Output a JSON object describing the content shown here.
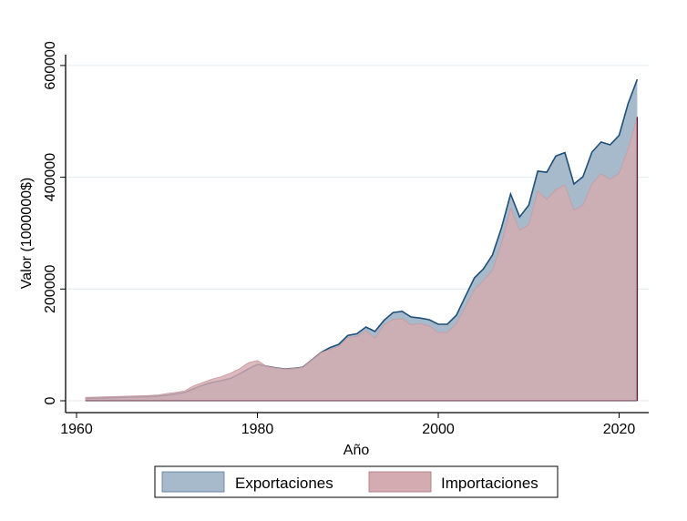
{
  "chart_data": {
    "type": "area",
    "xlabel": "Año",
    "ylabel": "Valor (1000000$)",
    "xlim": [
      1960,
      2023
    ],
    "ylim": [
      0,
      600000
    ],
    "xticks": [
      "1960",
      "1980",
      "2000",
      "2020"
    ],
    "yticks": [
      "0",
      "200000",
      "400000",
      "600000"
    ],
    "grid": true,
    "legend_position": "bottom",
    "x": [
      1961,
      1962,
      1963,
      1964,
      1965,
      1966,
      1967,
      1968,
      1969,
      1970,
      1971,
      1972,
      1973,
      1974,
      1975,
      1976,
      1977,
      1978,
      1979,
      1980,
      1981,
      1982,
      1983,
      1984,
      1985,
      1986,
      1987,
      1988,
      1989,
      1990,
      1991,
      1992,
      1993,
      1994,
      1995,
      1996,
      1997,
      1998,
      1999,
      2000,
      2001,
      2002,
      2003,
      2004,
      2005,
      2006,
      2007,
      2008,
      2009,
      2010,
      2011,
      2012,
      2013,
      2014,
      2015,
      2016,
      2017,
      2018,
      2019,
      2020,
      2021,
      2022
    ],
    "series": [
      {
        "name": "Exportaciones",
        "color": "#a7bacb",
        "line_color": "#1f4e79",
        "values": [
          4000,
          4500,
          5000,
          5500,
          6000,
          6500,
          7000,
          7500,
          8500,
          10000,
          12000,
          15000,
          22000,
          28000,
          33000,
          36000,
          40000,
          48000,
          57000,
          65000,
          62000,
          59000,
          57000,
          58000,
          60000,
          73000,
          86000,
          95000,
          101000,
          117000,
          120000,
          132000,
          124000,
          144000,
          158000,
          160000,
          150000,
          148000,
          145000,
          137000,
          137000,
          153000,
          187000,
          220000,
          236000,
          261000,
          310000,
          370000,
          329000,
          350000,
          411000,
          409000,
          438000,
          444000,
          388000,
          401000,
          445000,
          463000,
          458000,
          475000,
          532000,
          575000
        ]
      },
      {
        "name": "Importaciones",
        "color": "#d4abb0",
        "values": [
          6000,
          6500,
          7000,
          7500,
          8000,
          8500,
          9000,
          9500,
          10500,
          13000,
          15000,
          18000,
          27000,
          33000,
          39000,
          43000,
          49000,
          57000,
          68000,
          72000,
          62000,
          59000,
          57000,
          58000,
          60000,
          73000,
          86000,
          92000,
          97000,
          113000,
          115000,
          125000,
          112000,
          136000,
          145000,
          147000,
          136000,
          138000,
          134000,
          122000,
          122000,
          138000,
          168000,
          199000,
          215000,
          234000,
          282000,
          345000,
          305000,
          315000,
          375000,
          360000,
          378000,
          386000,
          341000,
          350000,
          388000,
          406000,
          396000,
          407000,
          451000,
          508000
        ]
      }
    ]
  }
}
